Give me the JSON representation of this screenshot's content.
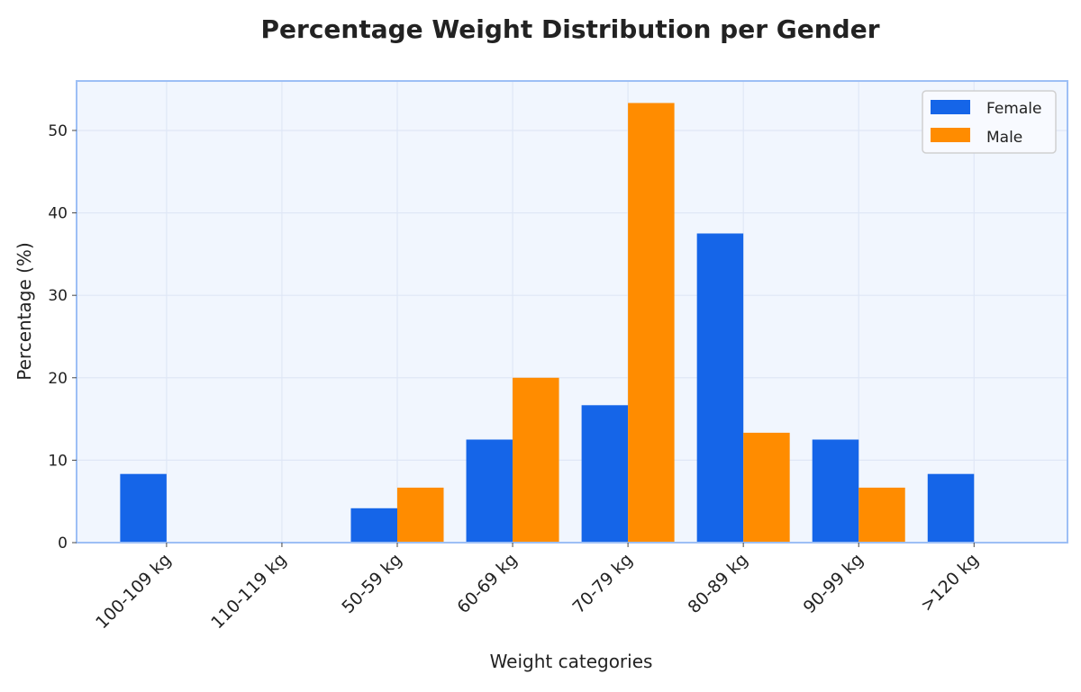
{
  "chart_data": {
    "type": "bar",
    "title": "Percentage Weight Distribution per Gender",
    "xlabel": "Weight categories",
    "ylabel": "Percentage (%)",
    "categories": [
      "100-109 kg",
      "110-119 kg",
      "50-59 kg",
      "60-69 kg",
      "70-79 kg",
      "80-89 kg",
      "90-99 kg",
      ">120 kg"
    ],
    "series": [
      {
        "name": "Female",
        "color": "#1565e8",
        "values": [
          8.33,
          0,
          4.17,
          12.5,
          16.67,
          37.5,
          12.5,
          8.33
        ]
      },
      {
        "name": "Male",
        "color": "#ff8c00",
        "values": [
          0,
          0,
          6.67,
          20.0,
          53.33,
          13.33,
          6.67,
          0
        ]
      }
    ],
    "yticks": [
      0,
      10,
      20,
      30,
      40,
      50
    ],
    "ylim": [
      0,
      56
    ],
    "grid": true,
    "legend": "top-right",
    "colors": {
      "plot_background": "#f1f6fe",
      "plot_border": "#9dbff5",
      "grid": "#dfe7f6"
    }
  }
}
